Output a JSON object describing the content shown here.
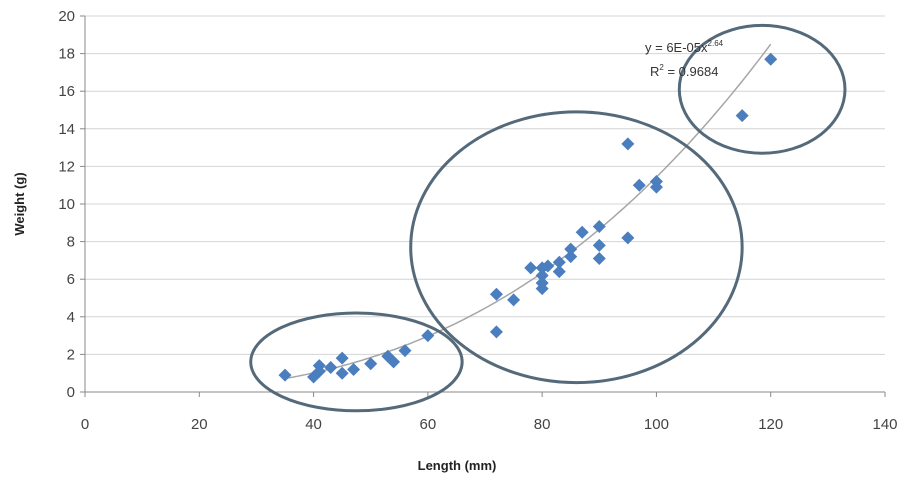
{
  "chart_data": {
    "type": "scatter",
    "title": "",
    "xlabel": "Length (mm)",
    "ylabel": "Weight (g)",
    "xlim": [
      0,
      140
    ],
    "ylim": [
      0,
      20
    ],
    "xticks": [
      "0",
      "20",
      "40",
      "60",
      "80",
      "100",
      "120",
      "140"
    ],
    "yticks": [
      "0",
      "2",
      "4",
      "6",
      "8",
      "10",
      "12",
      "14",
      "16",
      "18",
      "20"
    ],
    "grid": "horizontal",
    "legend": "none",
    "marker_color": "#4a7ebf",
    "points": [
      {
        "x": 35,
        "y": 0.9
      },
      {
        "x": 40,
        "y": 0.8
      },
      {
        "x": 41,
        "y": 1.1
      },
      {
        "x": 41,
        "y": 1.4
      },
      {
        "x": 43,
        "y": 1.3
      },
      {
        "x": 45,
        "y": 1.0
      },
      {
        "x": 45,
        "y": 1.8
      },
      {
        "x": 47,
        "y": 1.2
      },
      {
        "x": 50,
        "y": 1.5
      },
      {
        "x": 53,
        "y": 1.9
      },
      {
        "x": 54,
        "y": 1.6
      },
      {
        "x": 56,
        "y": 2.2
      },
      {
        "x": 60,
        "y": 3.0
      },
      {
        "x": 72,
        "y": 5.2
      },
      {
        "x": 72,
        "y": 3.2
      },
      {
        "x": 75,
        "y": 4.9
      },
      {
        "x": 78,
        "y": 6.6
      },
      {
        "x": 80,
        "y": 6.6
      },
      {
        "x": 80,
        "y": 6.2
      },
      {
        "x": 80,
        "y": 5.8
      },
      {
        "x": 80,
        "y": 5.5
      },
      {
        "x": 81,
        "y": 6.7
      },
      {
        "x": 83,
        "y": 6.4
      },
      {
        "x": 83,
        "y": 6.9
      },
      {
        "x": 85,
        "y": 7.2
      },
      {
        "x": 85,
        "y": 7.6
      },
      {
        "x": 87,
        "y": 8.5
      },
      {
        "x": 90,
        "y": 8.8
      },
      {
        "x": 90,
        "y": 7.8
      },
      {
        "x": 90,
        "y": 7.1
      },
      {
        "x": 95,
        "y": 13.2
      },
      {
        "x": 95,
        "y": 8.2
      },
      {
        "x": 97,
        "y": 11.0
      },
      {
        "x": 100,
        "y": 11.2
      },
      {
        "x": 100,
        "y": 10.9
      },
      {
        "x": 115,
        "y": 14.7
      },
      {
        "x": 120,
        "y": 17.7
      }
    ],
    "trendline": {
      "type": "power",
      "coefficient": 6e-05,
      "exponent": 2.64,
      "x_range": [
        35,
        120
      ],
      "equation_base": "y = 6E-05x",
      "equation_exponent": "2.64",
      "r2_base": "R",
      "r2_exponent": "2",
      "r2_value": " = 0.9684",
      "color": "#a6a6a6"
    },
    "annotations": [
      {
        "shape": "ellipse",
        "color": "#546a7b",
        "cx": 47.5,
        "cy": 1.6,
        "rx": 18.5,
        "ry": 2.6
      },
      {
        "shape": "ellipse",
        "color": "#546a7b",
        "cx": 86,
        "cy": 7.7,
        "rx": 29,
        "ry": 7.2
      },
      {
        "shape": "ellipse",
        "color": "#546a7b",
        "cx": 118.5,
        "cy": 16.1,
        "rx": 14.5,
        "ry": 3.4
      }
    ]
  }
}
